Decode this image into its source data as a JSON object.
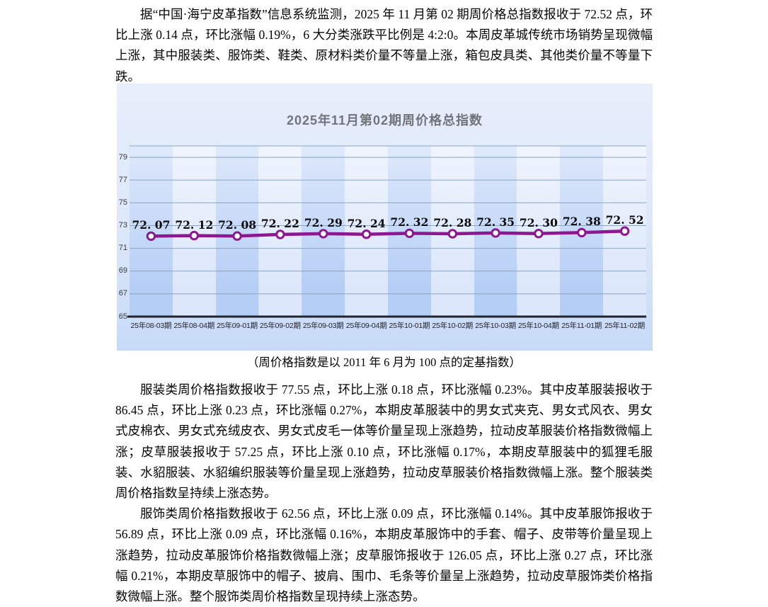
{
  "document": {
    "paragraphs": [
      {
        "text": "据“中国·海宁皮革指数”信息系统监测，2025 年 11 月第 02 期周价格总指数报收于 72.52 点，环比上涨 0.14 点，环比涨幅 0.19%，6 大分类涨跌平比例是 4:2:0。本周皮革城传统市场销势呈现微幅上涨，其中服装类、服饰类、鞋类、原材料类价量不等量上涨，箱包皮具类、其他类价量不等量下跌。"
      },
      {
        "text": "服装类周价格指数报收于 77.55 点，环比上涨 0.18 点，环比涨幅 0.23%。其中皮革服装报收于 86.45 点，环比上涨 0.23 点，环比涨幅 0.27%，本期皮革服装中的男女式夹克、男女式风衣、男女式皮棉衣、男女式充绒皮衣、男女式皮毛一体等价量呈现上涨趋势，拉动皮革服装价格指数微幅上涨；皮草服装报收于 57.25 点，环比上涨 0.10 点，环比涨幅 0.17%，本期皮草服装中的狐狸毛服装、水貂服装、水貂编织服装等价量呈现上涨趋势，拉动皮草服装价格指数微幅上涨。整个服装类周价格指数呈持续上涨态势。"
      },
      {
        "text": "服饰类周价格指数报收于 62.56 点，环比上涨 0.09 点，环比涨幅 0.14%。其中皮革服饰报收于 56.89 点，环比上涨 0.09 点，环比涨幅 0.16%，本期皮革服饰中的手套、帽子、皮带等价量呈现上涨趋势，拉动皮革服饰价格指数微幅上涨；皮草服饰报收于 126.05 点，环比上涨 0.27 点，环比涨幅 0.21%，本期皮草服饰中的帽子、披肩、围巾、毛条等价量呈上涨趋势，拉动皮草服饰类价格指数微幅上涨。整个服饰类周价格指数呈现持续上涨态势。"
      }
    ],
    "chart_caption": "（周价格指数是以 2011 年 6 月为 100 点的定基指数）"
  },
  "chart_data": {
    "type": "line",
    "title": "2025年11月第02期周价格总指数",
    "categories": [
      "25年08-03期",
      "25年08-04期",
      "25年09-01期",
      "25年09-02期",
      "25年09-03期",
      "25年09-04期",
      "25年10-01期",
      "25年10-02期",
      "25年10-03期",
      "25年10-04期",
      "25年11-01期",
      "25年11-02期"
    ],
    "values": [
      72.07,
      72.12,
      72.08,
      72.22,
      72.29,
      72.24,
      72.32,
      72.28,
      72.35,
      72.3,
      72.38,
      72.52
    ],
    "ylim": [
      65,
      80
    ],
    "yticks": [
      65,
      67,
      69,
      71,
      73,
      75,
      77,
      79
    ],
    "grid": true,
    "legend": "none",
    "marker": "circle-white",
    "colors": {
      "line": "#8e1690",
      "marker_fill": "#ffffff",
      "grid": "#8ea3bf",
      "axis": "#20242e",
      "band_dark": "#b5cef6",
      "band_light": "#dce7fb",
      "title": "#73737a"
    }
  }
}
